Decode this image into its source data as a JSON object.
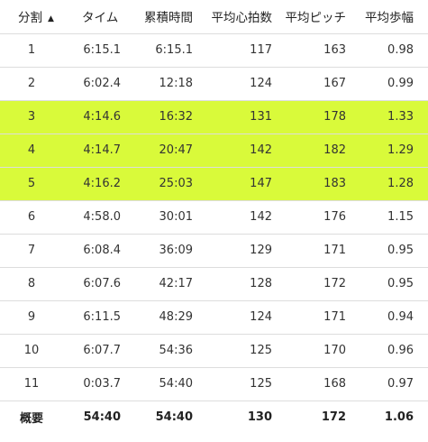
{
  "headers": {
    "split": "分割",
    "time": "タイム",
    "cumulative_time": "累積時間",
    "avg_hr": "平均心拍数",
    "avg_cadence": "平均ピッチ",
    "avg_stride": "平均歩幅"
  },
  "sort_icon": "▲",
  "colors": {
    "highlight": "#d9fa3a",
    "divider": "#dddddd"
  },
  "rows": [
    {
      "split": "1",
      "time": "6:15.1",
      "cumulative": "6:15.1",
      "hr": "117",
      "cadence": "163",
      "stride": "0.98",
      "highlight": false
    },
    {
      "split": "2",
      "time": "6:02.4",
      "cumulative": "12:18",
      "hr": "124",
      "cadence": "167",
      "stride": "0.99",
      "highlight": false
    },
    {
      "split": "3",
      "time": "4:14.6",
      "cumulative": "16:32",
      "hr": "131",
      "cadence": "178",
      "stride": "1.33",
      "highlight": true
    },
    {
      "split": "4",
      "time": "4:14.7",
      "cumulative": "20:47",
      "hr": "142",
      "cadence": "182",
      "stride": "1.29",
      "highlight": true
    },
    {
      "split": "5",
      "time": "4:16.2",
      "cumulative": "25:03",
      "hr": "147",
      "cadence": "183",
      "stride": "1.28",
      "highlight": true
    },
    {
      "split": "6",
      "time": "4:58.0",
      "cumulative": "30:01",
      "hr": "142",
      "cadence": "176",
      "stride": "1.15",
      "highlight": false
    },
    {
      "split": "7",
      "time": "6:08.4",
      "cumulative": "36:09",
      "hr": "129",
      "cadence": "171",
      "stride": "0.95",
      "highlight": false
    },
    {
      "split": "8",
      "time": "6:07.6",
      "cumulative": "42:17",
      "hr": "128",
      "cadence": "172",
      "stride": "0.95",
      "highlight": false
    },
    {
      "split": "9",
      "time": "6:11.5",
      "cumulative": "48:29",
      "hr": "124",
      "cadence": "171",
      "stride": "0.94",
      "highlight": false
    },
    {
      "split": "10",
      "time": "6:07.7",
      "cumulative": "54:36",
      "hr": "125",
      "cadence": "170",
      "stride": "0.96",
      "highlight": false
    },
    {
      "split": "11",
      "time": "0:03.7",
      "cumulative": "54:40",
      "hr": "125",
      "cadence": "168",
      "stride": "0.97",
      "highlight": false
    }
  ],
  "summary": {
    "label": "概要",
    "time": "54:40",
    "cumulative": "54:40",
    "hr": "130",
    "cadence": "172",
    "stride": "1.06"
  }
}
